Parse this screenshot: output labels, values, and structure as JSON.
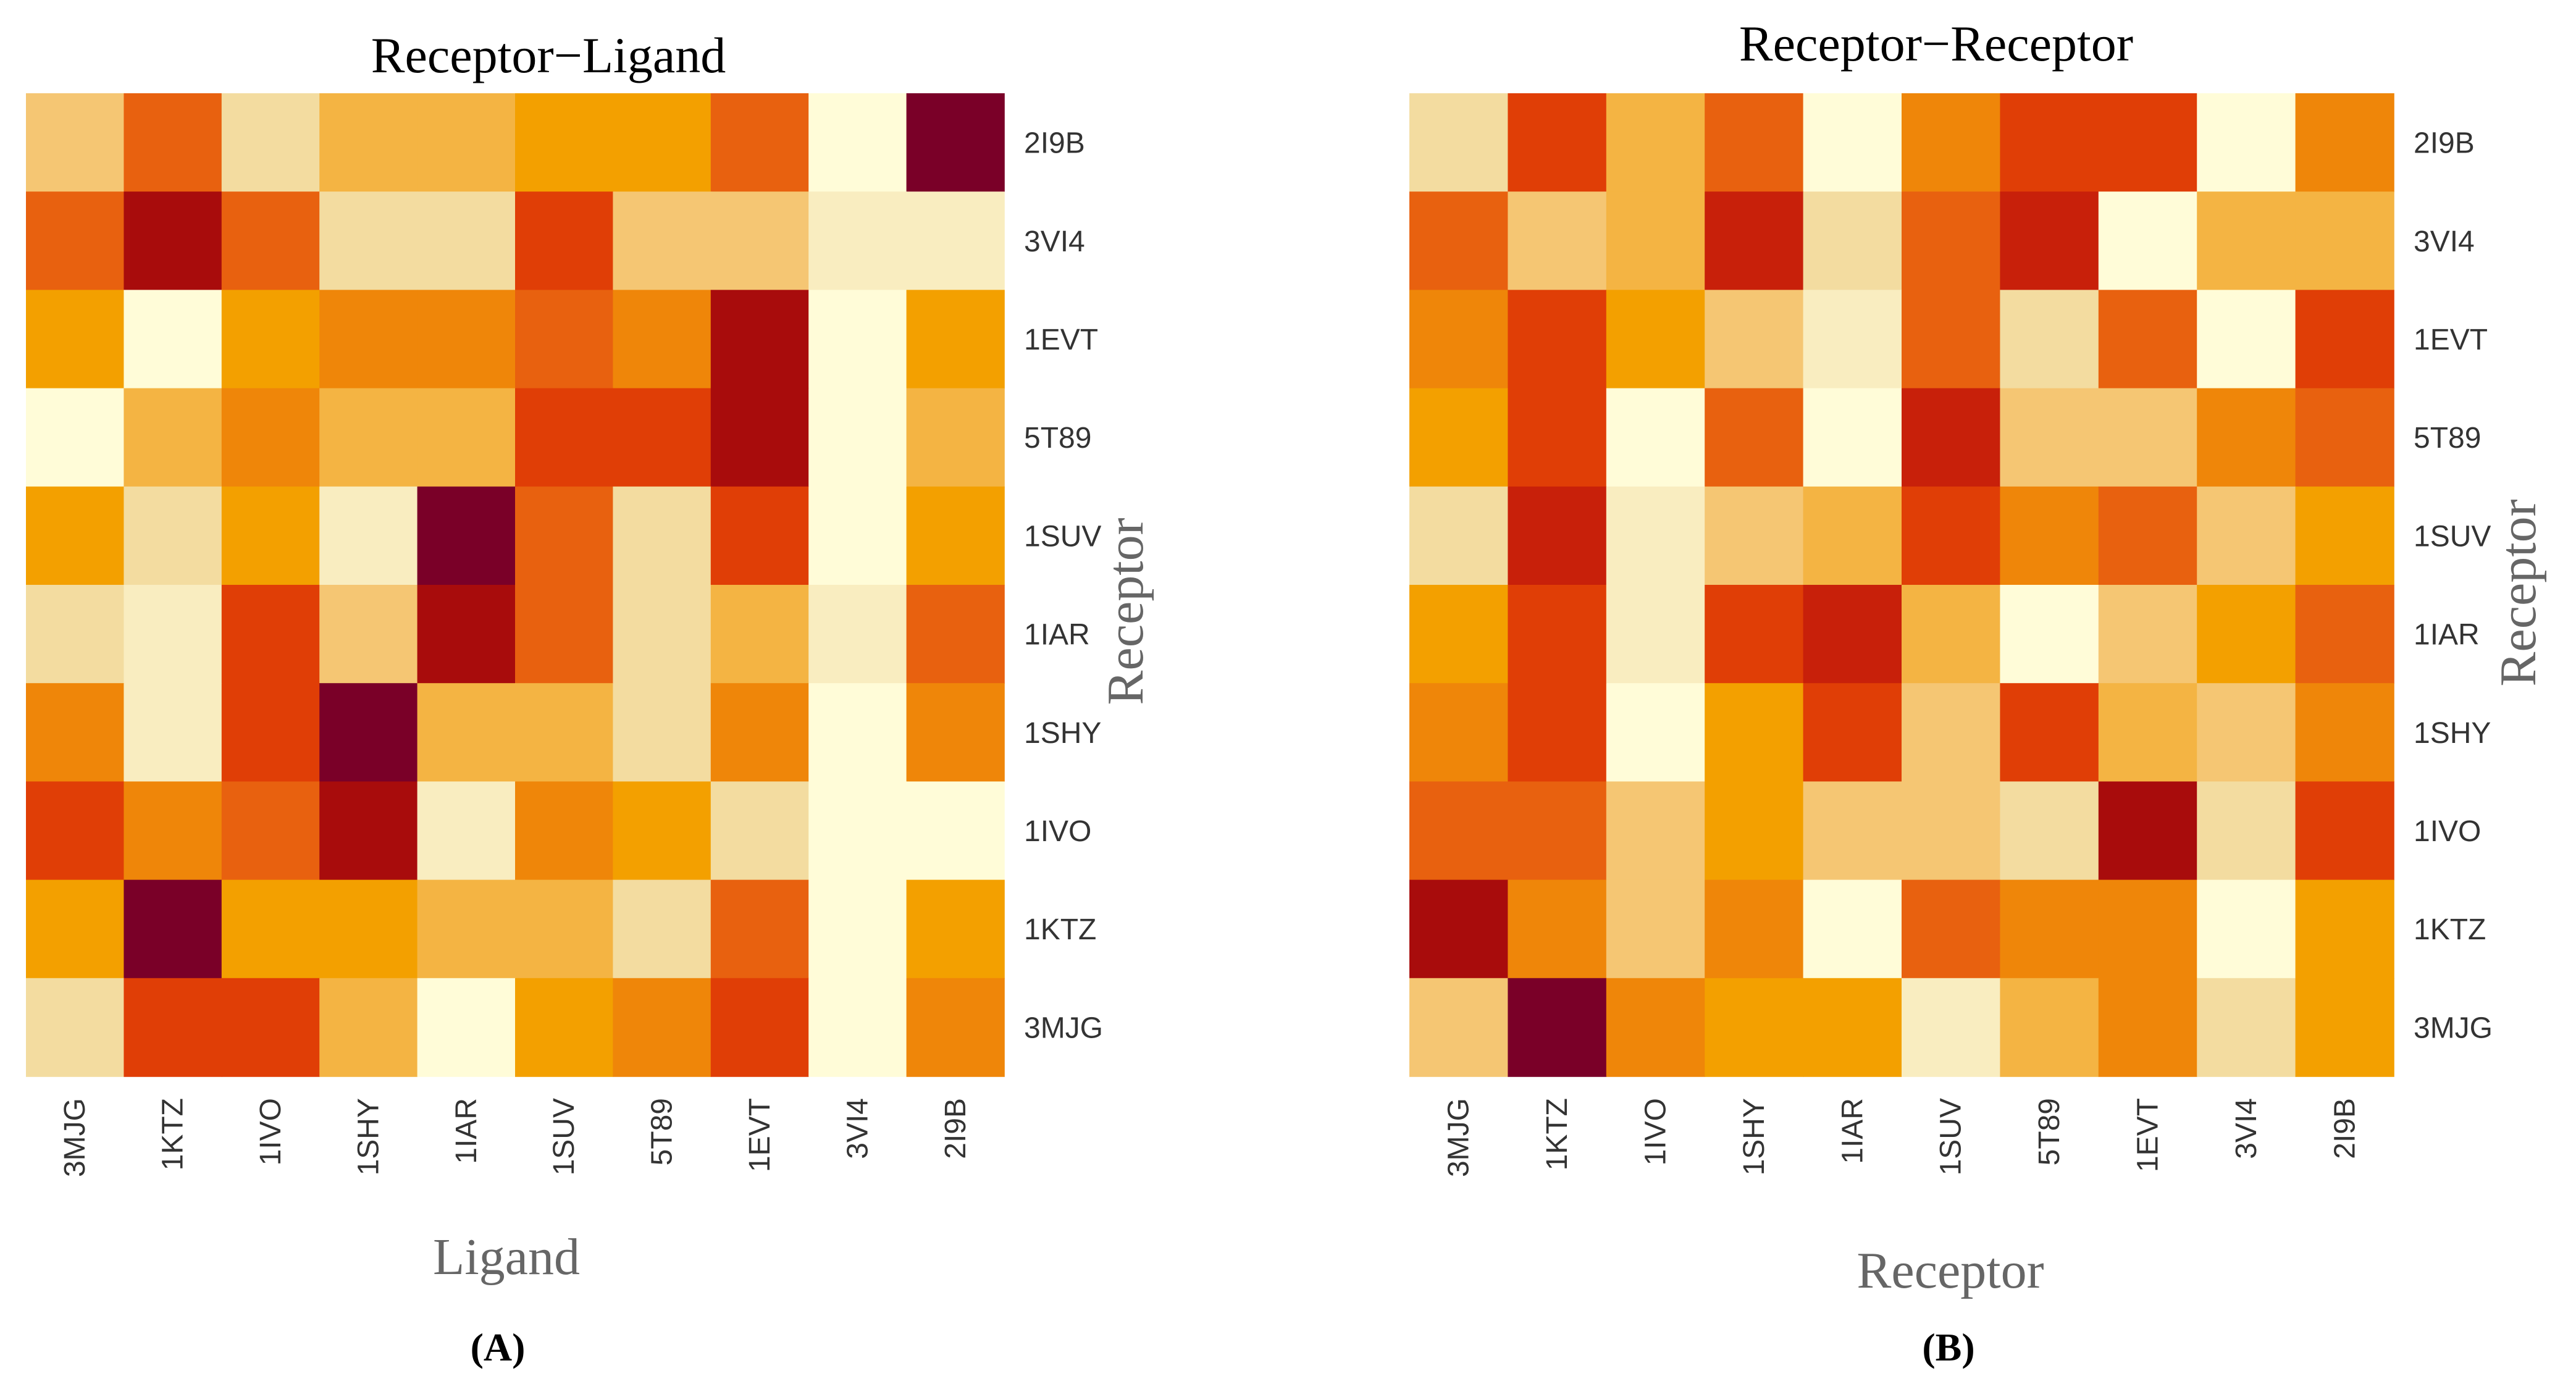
{
  "colors": {
    "scale": [
      "#fffcd8",
      "#f9edc0",
      "#f3dca0",
      "#f5c673",
      "#f4b443",
      "#f3a000",
      "#ef8609",
      "#e8610f",
      "#e03e06",
      "#c8200a",
      "#a80c0c",
      "#7a0028"
    ]
  },
  "chart_data": [
    {
      "type": "heatmap",
      "panel": "(A)",
      "title": "Receptor−Ligand",
      "xlabel": "Ligand",
      "ylabel": "Receptor",
      "x": [
        "3MJG",
        "1KTZ",
        "1IVO",
        "1SHY",
        "1IAR",
        "1SUV",
        "5T89",
        "1EVT",
        "3VI4",
        "2I9B"
      ],
      "y": [
        "2I9B",
        "3VI4",
        "1EVT",
        "5T89",
        "1SUV",
        "1IAR",
        "1SHY",
        "1IVO",
        "1KTZ",
        "3MJG"
      ],
      "scale_min": 0,
      "scale_max": 11,
      "values": [
        [
          3,
          7,
          2,
          4,
          4,
          5,
          5,
          7,
          0,
          11
        ],
        [
          7,
          10,
          7,
          2,
          2,
          8,
          3,
          3,
          1,
          1
        ],
        [
          5,
          0,
          5,
          6,
          6,
          7,
          6,
          10,
          0,
          5
        ],
        [
          0,
          4,
          6,
          4,
          4,
          8,
          8,
          10,
          0,
          4
        ],
        [
          5,
          2,
          5,
          1,
          11,
          7,
          2,
          8,
          0,
          5
        ],
        [
          2,
          1,
          8,
          3,
          10,
          7,
          2,
          4,
          1,
          7
        ],
        [
          6,
          1,
          8,
          11,
          4,
          4,
          2,
          6,
          0,
          6
        ],
        [
          8,
          6,
          7,
          10,
          1,
          6,
          5,
          2,
          0,
          0
        ],
        [
          5,
          11,
          5,
          5,
          4,
          4,
          2,
          7,
          0,
          5
        ],
        [
          2,
          8,
          8,
          4,
          0,
          5,
          6,
          8,
          0,
          6
        ]
      ]
    },
    {
      "type": "heatmap",
      "panel": "(B)",
      "title": "Receptor−Receptor",
      "xlabel": "Receptor",
      "ylabel": "Receptor",
      "x": [
        "3MJG",
        "1KTZ",
        "1IVO",
        "1SHY",
        "1IAR",
        "1SUV",
        "5T89",
        "1EVT",
        "3VI4",
        "2I9B"
      ],
      "y": [
        "2I9B",
        "3VI4",
        "1EVT",
        "5T89",
        "1SUV",
        "1IAR",
        "1SHY",
        "1IVO",
        "1KTZ",
        "3MJG"
      ],
      "scale_min": 0,
      "scale_max": 11,
      "values": [
        [
          2,
          8,
          4,
          7,
          0,
          6,
          8,
          8,
          0,
          6
        ],
        [
          7,
          3,
          4,
          9,
          2,
          7,
          9,
          0,
          4,
          4
        ],
        [
          6,
          8,
          5,
          3,
          1,
          7,
          2,
          7,
          0,
          8
        ],
        [
          5,
          8,
          0,
          7,
          0,
          9,
          3,
          3,
          6,
          7
        ],
        [
          2,
          9,
          1,
          3,
          4,
          8,
          6,
          7,
          3,
          5
        ],
        [
          5,
          8,
          1,
          8,
          9,
          4,
          0,
          3,
          5,
          7
        ],
        [
          6,
          8,
          0,
          5,
          8,
          3,
          8,
          4,
          3,
          6
        ],
        [
          7,
          7,
          3,
          5,
          3,
          3,
          2,
          10,
          2,
          8
        ],
        [
          10,
          6,
          3,
          6,
          0,
          7,
          6,
          6,
          0,
          5
        ],
        [
          3,
          11,
          6,
          5,
          5,
          1,
          4,
          6,
          2,
          5
        ]
      ]
    }
  ]
}
